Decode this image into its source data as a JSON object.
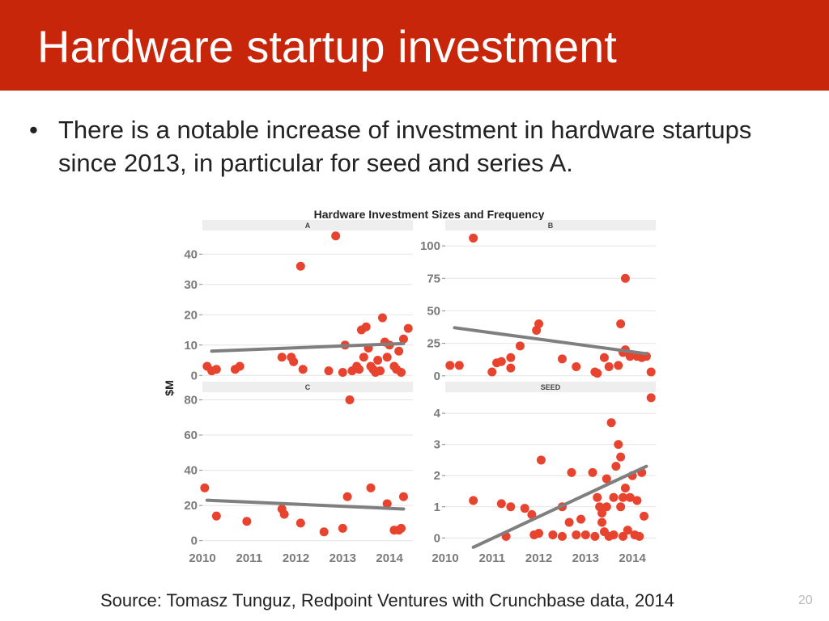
{
  "slide": {
    "title": "Hardware startup investment",
    "bullet": "There is a notable increase of investment in hardware startups since 2013, in particular for seed and series A.",
    "source": "Source: Tomasz Tunguz, Redpoint Ventures with Crunchbase data, 2014",
    "page_number": "20"
  },
  "colors": {
    "header": "#c8260a",
    "point": "#e8432e",
    "trend": "#7f7f7f",
    "strip": "#eeeeee",
    "grid": "#e4e4e4"
  },
  "chart_data": {
    "type": "scatter",
    "title": "Hardware Investment Sizes and Frequency",
    "ylabel": "$M",
    "xlabel": "",
    "x_ticks": [
      "2010",
      "2011",
      "2012",
      "2013",
      "2014"
    ],
    "panels": [
      {
        "name": "A",
        "x_range": [
          2010,
          2014.5
        ],
        "y_range": [
          -1,
          47
        ],
        "y_ticks": [
          0,
          10,
          20,
          30,
          40
        ],
        "trend": [
          [
            2010.2,
            8
          ],
          [
            2014.3,
            10.5
          ]
        ],
        "points": [
          [
            2010.1,
            3
          ],
          [
            2010.2,
            1.5
          ],
          [
            2010.3,
            2
          ],
          [
            2010.7,
            2
          ],
          [
            2010.8,
            3
          ],
          [
            2011.7,
            6
          ],
          [
            2011.9,
            6
          ],
          [
            2011.95,
            4.5
          ],
          [
            2012.1,
            36
          ],
          [
            2012.15,
            2
          ],
          [
            2012.7,
            1.5
          ],
          [
            2012.85,
            46
          ],
          [
            2013.0,
            1
          ],
          [
            2013.05,
            10
          ],
          [
            2013.2,
            1.5
          ],
          [
            2013.3,
            3
          ],
          [
            2013.35,
            2
          ],
          [
            2013.4,
            15
          ],
          [
            2013.45,
            6
          ],
          [
            2013.5,
            16
          ],
          [
            2013.55,
            9
          ],
          [
            2013.6,
            3
          ],
          [
            2013.65,
            2
          ],
          [
            2013.7,
            1
          ],
          [
            2013.75,
            5
          ],
          [
            2013.8,
            1.5
          ],
          [
            2013.85,
            19
          ],
          [
            2013.9,
            11
          ],
          [
            2013.95,
            6
          ],
          [
            2014.0,
            10
          ],
          [
            2014.1,
            3
          ],
          [
            2014.15,
            2
          ],
          [
            2014.2,
            8
          ],
          [
            2014.25,
            1
          ],
          [
            2014.3,
            12
          ],
          [
            2014.4,
            15.5
          ]
        ]
      },
      {
        "name": "B",
        "x_range": [
          2010,
          2014.5
        ],
        "y_range": [
          -2,
          110
        ],
        "y_ticks": [
          0,
          25,
          50,
          75,
          100
        ],
        "trend": [
          [
            2010.2,
            37
          ],
          [
            2014.3,
            17
          ]
        ],
        "points": [
          [
            2010.1,
            8
          ],
          [
            2010.3,
            8
          ],
          [
            2010.6,
            106
          ],
          [
            2011.0,
            3
          ],
          [
            2011.1,
            10
          ],
          [
            2011.2,
            11
          ],
          [
            2011.4,
            6
          ],
          [
            2011.4,
            14
          ],
          [
            2011.6,
            23
          ],
          [
            2011.95,
            35
          ],
          [
            2012.0,
            40
          ],
          [
            2012.5,
            13
          ],
          [
            2012.8,
            7
          ],
          [
            2013.2,
            3
          ],
          [
            2013.25,
            2
          ],
          [
            2013.4,
            14
          ],
          [
            2013.5,
            7
          ],
          [
            2013.7,
            8
          ],
          [
            2013.75,
            40
          ],
          [
            2013.8,
            18
          ],
          [
            2013.85,
            75
          ],
          [
            2013.85,
            20
          ],
          [
            2013.95,
            15
          ],
          [
            2014.1,
            15
          ],
          [
            2014.2,
            14
          ],
          [
            2014.3,
            15
          ],
          [
            2014.4,
            3
          ]
        ]
      },
      {
        "name": "C",
        "x_range": [
          2010,
          2014.5
        ],
        "y_range": [
          -2,
          83
        ],
        "y_ticks": [
          0,
          20,
          40,
          60,
          80
        ],
        "trend": [
          [
            2010.1,
            23
          ],
          [
            2014.3,
            18
          ]
        ],
        "points": [
          [
            2010.05,
            30
          ],
          [
            2010.3,
            14
          ],
          [
            2010.95,
            11
          ],
          [
            2011.7,
            18
          ],
          [
            2011.75,
            15
          ],
          [
            2012.1,
            10
          ],
          [
            2012.6,
            5
          ],
          [
            2013.0,
            7
          ],
          [
            2013.1,
            25
          ],
          [
            2013.15,
            80
          ],
          [
            2013.6,
            30
          ],
          [
            2013.95,
            21
          ],
          [
            2014.1,
            6
          ],
          [
            2014.2,
            6
          ],
          [
            2014.25,
            7
          ],
          [
            2014.3,
            25
          ]
        ]
      },
      {
        "name": "SEED",
        "x_range": [
          2010,
          2014.5
        ],
        "y_range": [
          -0.2,
          4.6
        ],
        "y_ticks": [
          0,
          1,
          2,
          3,
          4
        ],
        "trend": [
          [
            2010.6,
            -0.3
          ],
          [
            2014.3,
            2.3
          ]
        ],
        "points": [
          [
            2010.6,
            1.2
          ],
          [
            2011.2,
            1.1
          ],
          [
            2011.3,
            0.05
          ],
          [
            2011.4,
            1.0
          ],
          [
            2011.7,
            0.95
          ],
          [
            2011.85,
            0.75
          ],
          [
            2011.9,
            0.1
          ],
          [
            2012.0,
            0.15
          ],
          [
            2012.05,
            2.5
          ],
          [
            2012.3,
            0.1
          ],
          [
            2012.5,
            1.0
          ],
          [
            2012.5,
            0.05
          ],
          [
            2012.65,
            0.5
          ],
          [
            2012.7,
            2.1
          ],
          [
            2012.8,
            0.1
          ],
          [
            2012.9,
            0.6
          ],
          [
            2013.0,
            0.1
          ],
          [
            2013.15,
            2.1
          ],
          [
            2013.2,
            0.05
          ],
          [
            2013.25,
            1.3
          ],
          [
            2013.3,
            1.0
          ],
          [
            2013.35,
            0.8
          ],
          [
            2013.35,
            0.5
          ],
          [
            2013.4,
            0.2
          ],
          [
            2013.45,
            1.0
          ],
          [
            2013.45,
            1.9
          ],
          [
            2013.5,
            0.05
          ],
          [
            2013.55,
            3.7
          ],
          [
            2013.6,
            1.3
          ],
          [
            2013.6,
            0.1
          ],
          [
            2013.65,
            2.3
          ],
          [
            2013.7,
            3.0
          ],
          [
            2013.75,
            2.6
          ],
          [
            2013.75,
            1.0
          ],
          [
            2013.8,
            1.3
          ],
          [
            2013.8,
            0.05
          ],
          [
            2013.85,
            1.6
          ],
          [
            2013.9,
            0.25
          ],
          [
            2013.95,
            1.3
          ],
          [
            2014.0,
            2.0
          ],
          [
            2014.05,
            0.1
          ],
          [
            2014.1,
            1.2
          ],
          [
            2014.15,
            0.05
          ],
          [
            2014.2,
            2.1
          ],
          [
            2014.25,
            0.7
          ],
          [
            2014.4,
            4.5
          ]
        ]
      }
    ]
  }
}
